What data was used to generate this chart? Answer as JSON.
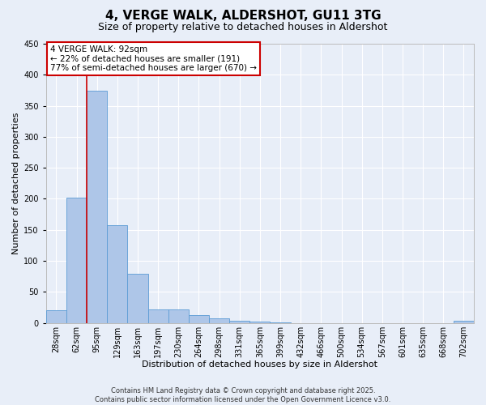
{
  "title": "4, VERGE WALK, ALDERSHOT, GU11 3TG",
  "subtitle": "Size of property relative to detached houses in Aldershot",
  "xlabel": "Distribution of detached houses by size in Aldershot",
  "ylabel": "Number of detached properties",
  "footnote1": "Contains HM Land Registry data © Crown copyright and database right 2025.",
  "footnote2": "Contains public sector information licensed under the Open Government Licence v3.0.",
  "bin_labels": [
    "28sqm",
    "62sqm",
    "95sqm",
    "129sqm",
    "163sqm",
    "197sqm",
    "230sqm",
    "264sqm",
    "298sqm",
    "331sqm",
    "365sqm",
    "399sqm",
    "432sqm",
    "466sqm",
    "500sqm",
    "534sqm",
    "567sqm",
    "601sqm",
    "635sqm",
    "668sqm",
    "702sqm"
  ],
  "bar_values": [
    20,
    202,
    374,
    158,
    79,
    22,
    22,
    13,
    8,
    4,
    2,
    1,
    0,
    0,
    0,
    0,
    0,
    0,
    0,
    0,
    3
  ],
  "bar_color": "#aec6e8",
  "bar_edgecolor": "#5b9bd5",
  "vline_pos": 2.0,
  "vline_color": "#cc0000",
  "annotation_box_text": "4 VERGE WALK: 92sqm\n← 22% of detached houses are smaller (191)\n77% of semi-detached houses are larger (670) →",
  "annotation_box_edgecolor": "#cc0000",
  "annotation_box_facecolor": "white",
  "ylim": [
    0,
    450
  ],
  "yticks": [
    0,
    50,
    100,
    150,
    200,
    250,
    300,
    350,
    400,
    450
  ],
  "background_color": "#e8eef8",
  "grid_color": "white",
  "title_fontsize": 11,
  "subtitle_fontsize": 9,
  "axis_label_fontsize": 8,
  "tick_fontsize": 7,
  "annotation_fontsize": 7.5,
  "footnote_fontsize": 6
}
